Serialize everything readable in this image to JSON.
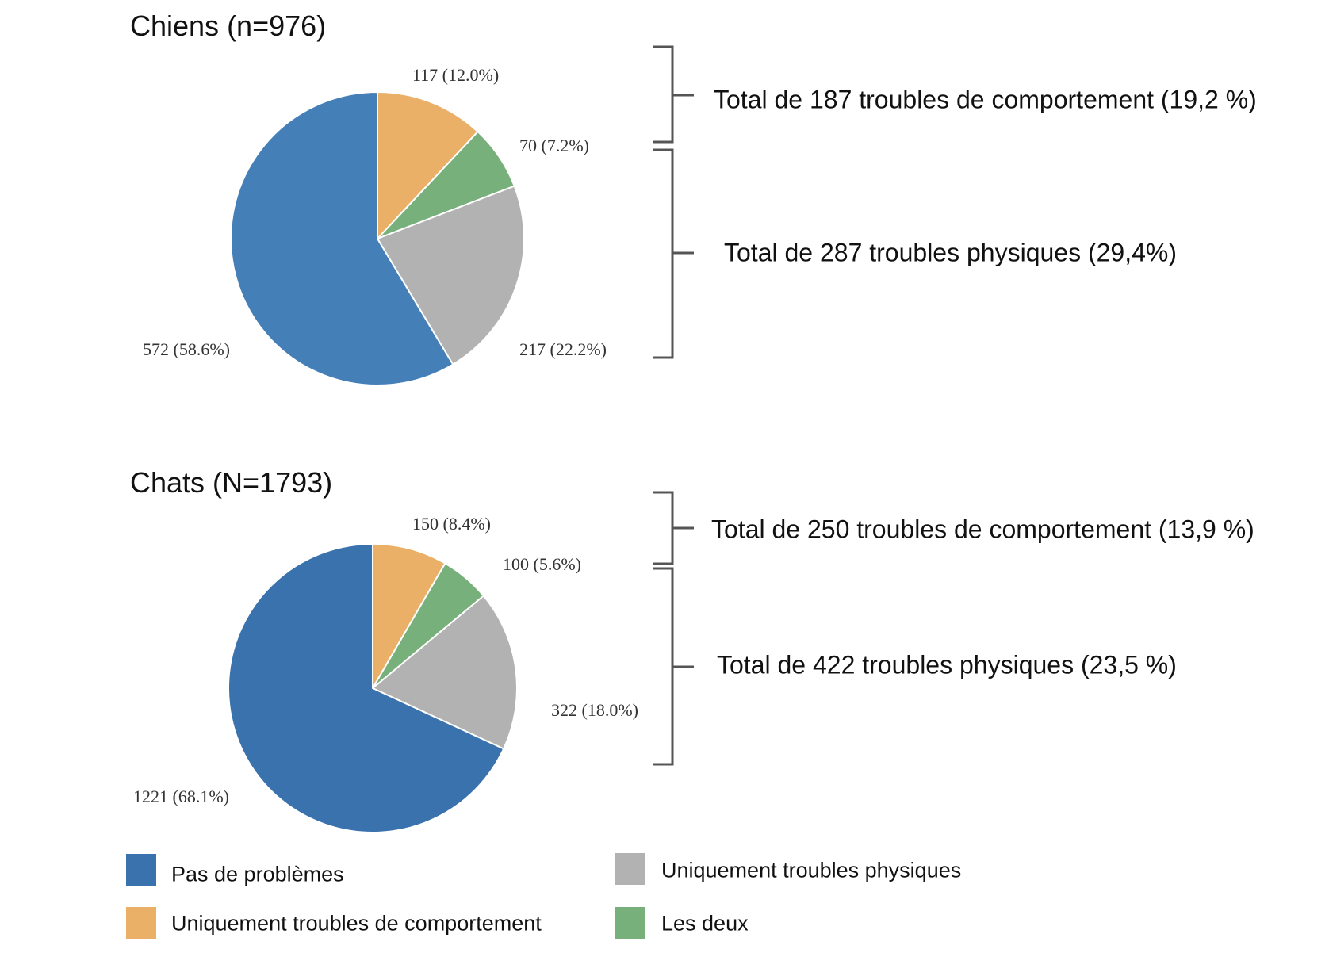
{
  "colors": {
    "none_dogs": "#457fb8",
    "none_cats": "#3a72ae",
    "behaviour": "#eab068",
    "both": "#78b07c",
    "physical": "#b2b2b2",
    "bracket": "#555555"
  },
  "chart_data": [
    {
      "type": "pie",
      "title": "Chiens (n=976)",
      "start": "top",
      "direction": "clockwise",
      "slices": [
        {
          "name": "Uniquement troubles de comportement",
          "value": 117,
          "label": "117 (12.0%)"
        },
        {
          "name": "Les deux",
          "value": 70,
          "label": "70 (7.2%)"
        },
        {
          "name": "Uniquement troubles physiques",
          "value": 217,
          "label": "217 (22.2%)"
        },
        {
          "name": "Pas de problèmes",
          "value": 572,
          "label": "572 (58.6%)"
        }
      ],
      "totals": [
        "Total de 187 troubles de comportement (19,2 %)",
        "Total de 287 troubles physiques (29,4%)"
      ]
    },
    {
      "type": "pie",
      "title": "Chats (N=1793)",
      "start": "top",
      "direction": "clockwise",
      "slices": [
        {
          "name": "Uniquement troubles de comportement",
          "value": 150,
          "label": "150 (8.4%)"
        },
        {
          "name": "Les deux",
          "value": 100,
          "label": "100 (5.6%)"
        },
        {
          "name": "Uniquement troubles physiques",
          "value": 322,
          "label": "322 (18.0%)"
        },
        {
          "name": "Pas de problèmes",
          "value": 1221,
          "label": "1221 (68.1%)"
        }
      ],
      "totals": [
        "Total de 250 troubles de comportement (13,9 %)",
        "Total de 422 troubles physiques (23,5 %)"
      ]
    }
  ],
  "legend": [
    "Pas de problèmes",
    "Uniquement troubles de comportement",
    "Uniquement troubles physiques",
    "Les deux"
  ]
}
